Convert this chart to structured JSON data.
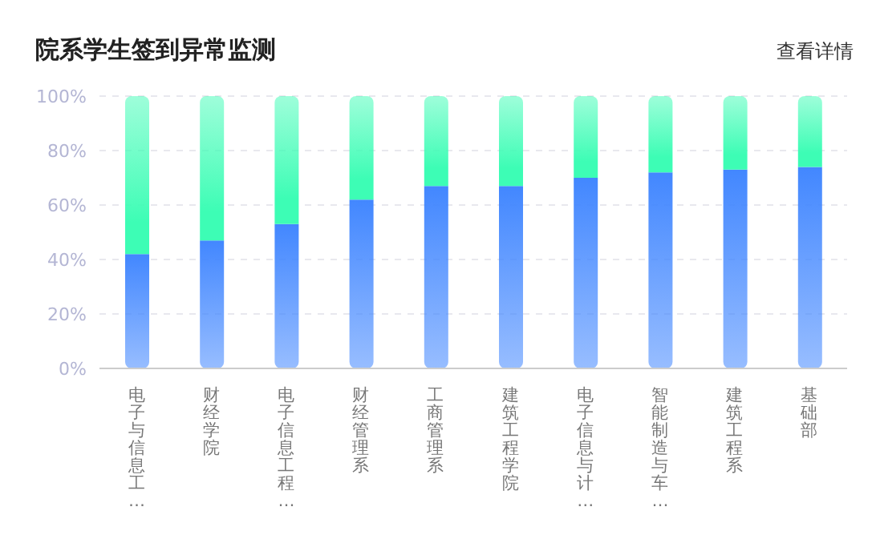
{
  "chart_data": {
    "type": "bar",
    "title": "院系学生签到异常监测",
    "annotations": [
      "查看详情"
    ],
    "categories": [
      "电子与信息工…",
      "财经学院",
      "电子信息工程…",
      "财经管理系",
      "工商管理系",
      "建筑工程学院",
      "电子信息与计…",
      "智能制造与车…",
      "建筑工程系",
      "基础部"
    ],
    "stacked": true,
    "series": [
      {
        "color": "#4287ff",
        "values": [
          42,
          47,
          53,
          62,
          67,
          67,
          70,
          72,
          73,
          74
        ]
      },
      {
        "color": "#3dfdb5",
        "values": [
          58,
          53,
          47,
          38,
          33,
          33,
          30,
          28,
          27,
          26
        ]
      }
    ],
    "ylim": [
      0,
      100
    ],
    "yticks": [
      {
        "value": 0,
        "label": "0%"
      },
      {
        "value": 20,
        "label": "20%"
      },
      {
        "value": 40,
        "label": "40%"
      },
      {
        "value": 60,
        "label": "60%"
      },
      {
        "value": 80,
        "label": "80%"
      },
      {
        "value": 100,
        "label": "100%"
      }
    ],
    "grid": "y",
    "legend": false
  }
}
